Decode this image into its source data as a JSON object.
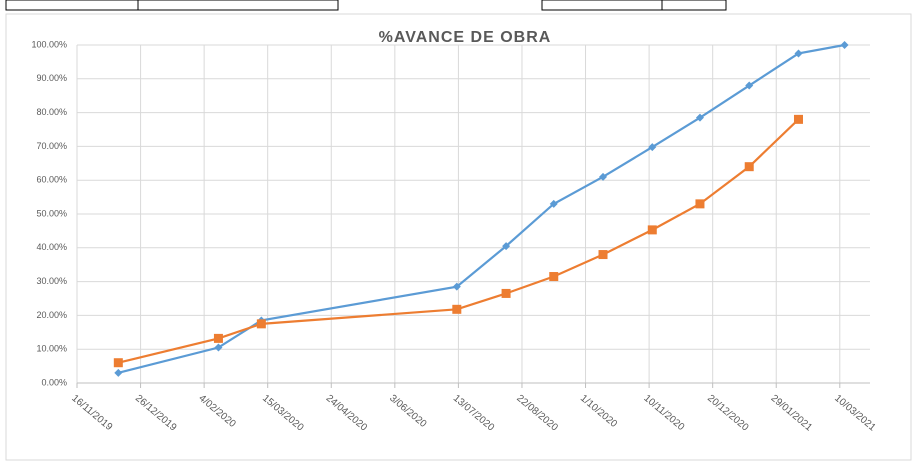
{
  "chart_data": {
    "type": "line",
    "title": "%AVANCE DE OBRA",
    "x": [
      "2019-12-12",
      "2020-02-13",
      "2020-03-11",
      "2020-07-12",
      "2020-08-12",
      "2020-09-11",
      "2020-10-12",
      "2020-11-12",
      "2020-12-12",
      "2021-01-12",
      "2021-02-12",
      "2021-03-13"
    ],
    "series": [
      {
        "color": "#5b9bd5",
        "values": [
          3,
          10.5,
          18.5,
          28.5,
          40.5,
          53,
          61,
          69.8,
          78.5,
          88,
          97.5,
          100
        ]
      },
      {
        "color": "#ed7d31",
        "values": [
          6,
          13.2,
          17.5,
          21.8,
          26.5,
          31.5,
          38,
          45.3,
          53,
          64,
          78,
          null
        ]
      }
    ],
    "xlim": [
      "2019-11-16",
      "2021-03-29"
    ],
    "xticks": [
      {
        "value": "2019-11-16",
        "label": "16/11/2019"
      },
      {
        "value": "2019-12-26",
        "label": "26/12/2019"
      },
      {
        "value": "2020-02-04",
        "label": "4/02/2020"
      },
      {
        "value": "2020-03-15",
        "label": "15/03/2020"
      },
      {
        "value": "2020-04-24",
        "label": "24/04/2020"
      },
      {
        "value": "2020-06-03",
        "label": "3/06/2020"
      },
      {
        "value": "2020-07-13",
        "label": "13/07/2020"
      },
      {
        "value": "2020-08-22",
        "label": "22/08/2020"
      },
      {
        "value": "2020-10-01",
        "label": "1/10/2020"
      },
      {
        "value": "2020-11-10",
        "label": "10/11/2020"
      },
      {
        "value": "2020-12-20",
        "label": "20/12/2020"
      },
      {
        "value": "2021-01-29",
        "label": "29/01/2021"
      },
      {
        "value": "2021-03-10",
        "label": "10/03/2021"
      }
    ],
    "ylim": [
      0,
      100
    ],
    "yticks": [
      {
        "value": 0,
        "label": "0.00%"
      },
      {
        "value": 10,
        "label": "10.00%"
      },
      {
        "value": 20,
        "label": "20.00%"
      },
      {
        "value": 30,
        "label": "30.00%"
      },
      {
        "value": 40,
        "label": "40.00%"
      },
      {
        "value": 50,
        "label": "50.00%"
      },
      {
        "value": 60,
        "label": "60.00%"
      },
      {
        "value": 70,
        "label": "70.00%"
      },
      {
        "value": 80,
        "label": "80.00%"
      },
      {
        "value": 90,
        "label": "90.00%"
      },
      {
        "value": 100,
        "label": "100.00%"
      }
    ],
    "grid": true
  }
}
